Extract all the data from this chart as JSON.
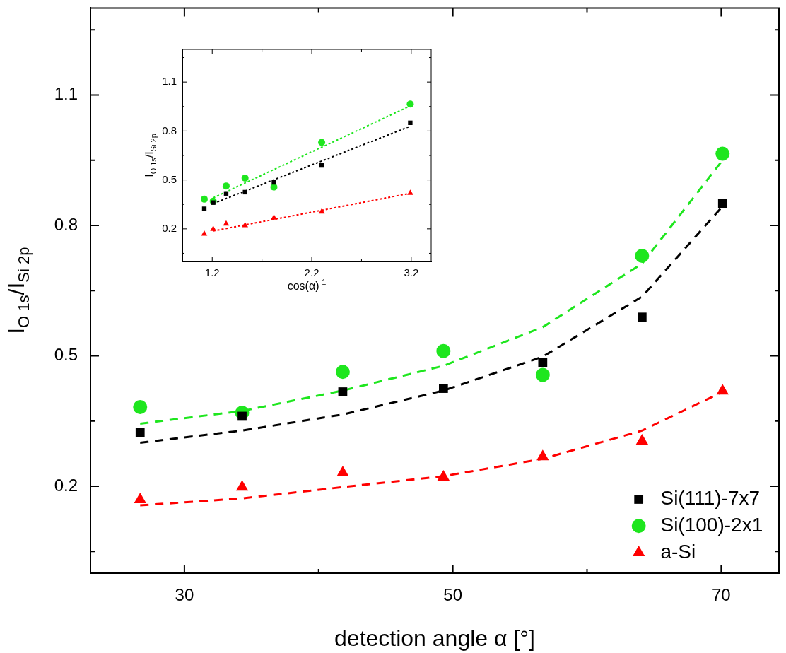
{
  "chart_data": [
    {
      "type": "scatter",
      "xlabel": "detection angle α [°]",
      "ylabel": "I$_{O 1s}$/I$_{Si 2p}$",
      "x": [
        26.7,
        34.3,
        41.8,
        49.3,
        56.7,
        64.1,
        70.1
      ],
      "xlim": [
        23,
        74.3
      ],
      "ylim": [
        0,
        1.3
      ],
      "xticks": [
        30,
        {
          "value": 40,
          "label": null
        },
        50,
        {
          "value": 60,
          "label": null
        },
        70
      ],
      "yticks": [
        {
          "value": 0.05,
          "label": null
        },
        0.2,
        {
          "value": 0.35,
          "label": null
        },
        0.5,
        {
          "value": 0.65,
          "label": null
        },
        0.8,
        {
          "value": 0.95,
          "label": null
        },
        1.1,
        {
          "value": 1.25,
          "label": null
        }
      ],
      "legend": "bottom right",
      "series": [
        {
          "name": "Si(111)-7x7",
          "type": "scatter",
          "marker": "square",
          "color": "#000000",
          "values": [
            0.323,
            0.361,
            0.417,
            0.425,
            0.485,
            0.589,
            0.85
          ]
        },
        {
          "name": "Si(100)-2x1",
          "type": "scatter",
          "marker": "circle",
          "color": "#1ee61e",
          "values": [
            0.382,
            0.369,
            0.463,
            0.511,
            0.456,
            0.73,
            0.965
          ]
        },
        {
          "name": "a-Si",
          "type": "scatter",
          "marker": "triangle",
          "color": "#ff0000",
          "values": [
            0.169,
            0.198,
            0.231,
            0.221,
            0.268,
            0.304,
            0.419
          ]
        },
        {
          "type": "line",
          "line_style": "dashed",
          "color": "#000000",
          "values": [
            0.3,
            0.328,
            0.365,
            0.42,
            0.498,
            0.636,
            0.844
          ]
        },
        {
          "type": "line",
          "line_style": "dashed",
          "color": "#1ee61e",
          "values": [
            0.344,
            0.373,
            0.42,
            0.477,
            0.566,
            0.712,
            0.95
          ]
        },
        {
          "type": "line",
          "line_style": "dashed",
          "color": "#ff0000",
          "values": [
            0.156,
            0.172,
            0.198,
            0.223,
            0.263,
            0.328,
            0.417
          ]
        }
      ]
    },
    {
      "type": "scatter",
      "xlabel": "cos(α)$^{-1}$",
      "ylabel": "I$_{O 1s}$/I$_{Si 2p}$",
      "x": [
        1.12,
        1.21,
        1.34,
        1.53,
        1.82,
        2.3,
        3.19
      ],
      "xlim": [
        0.9,
        3.4
      ],
      "ylim": [
        0,
        1.3
      ],
      "xticks": [
        1.2,
        {
          "value": 1.7,
          "label": null
        },
        2.2,
        {
          "value": 2.7,
          "label": null
        },
        3.2
      ],
      "yticks": [
        {
          "value": 0.05,
          "label": null
        },
        0.2,
        {
          "value": 0.35,
          "label": null
        },
        0.5,
        {
          "value": 0.65,
          "label": null
        },
        0.8,
        {
          "value": 0.95,
          "label": null
        },
        1.1,
        {
          "value": 1.25,
          "label": null
        }
      ],
      "series": [
        {
          "type": "scatter",
          "marker": "square",
          "color": "#000000",
          "values": [
            0.323,
            0.361,
            0.417,
            0.425,
            0.485,
            0.589,
            0.85
          ]
        },
        {
          "type": "scatter",
          "marker": "circle",
          "color": "#1ee61e",
          "values": [
            0.382,
            0.369,
            0.463,
            0.511,
            0.456,
            0.73,
            0.965
          ]
        },
        {
          "type": "scatter",
          "marker": "triangle",
          "color": "#ff0000",
          "values": [
            0.169,
            0.198,
            0.231,
            0.221,
            0.268,
            0.304,
            0.419
          ]
        },
        {
          "type": "line",
          "line_style": "dotted",
          "color": "#000000",
          "values": [
            null,
            0.355,
            null,
            null,
            null,
            null,
            0.829
          ]
        },
        {
          "type": "line",
          "line_style": "dotted",
          "color": "#1ee61e",
          "values": [
            null,
            0.39,
            null,
            null,
            null,
            null,
            0.954
          ]
        },
        {
          "type": "line",
          "line_style": "dotted",
          "color": "#ff0000",
          "values": [
            null,
            0.187,
            null,
            null,
            null,
            null,
            0.418
          ]
        }
      ]
    }
  ]
}
